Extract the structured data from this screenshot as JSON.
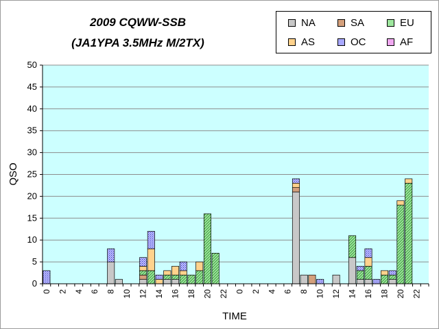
{
  "chart_data": {
    "type": "bar",
    "stacked": true,
    "title_line1": "2009 CQWW-SSB",
    "title_line2": "(JA1YPA  3.5MHz  M/2TX)",
    "xlabel": "TIME",
    "ylabel": "QSO",
    "ylim": [
      0,
      50
    ],
    "yticks": [
      "0",
      "5",
      "10",
      "15",
      "20",
      "25",
      "30",
      "35",
      "40",
      "45",
      "50"
    ],
    "grid": true,
    "legend_position": "top-right",
    "categories": [
      "0",
      "",
      "2",
      "",
      "4",
      "",
      "6",
      "",
      "8",
      "",
      "10",
      "",
      "12",
      "",
      "14",
      "",
      "16",
      "",
      "18",
      "",
      "20",
      "",
      "22",
      "",
      "0",
      "",
      "2",
      "",
      "4",
      "",
      "6",
      "",
      "8",
      "",
      "10",
      "",
      "12",
      "",
      "14",
      "",
      "16",
      "",
      "18",
      "",
      "20",
      "",
      "22",
      ""
    ],
    "series": [
      {
        "name": "NA",
        "color": "#c8c8c8",
        "pattern": "solid",
        "values": [
          0,
          0,
          0,
          0,
          0,
          0,
          0,
          0,
          5,
          1,
          0,
          0,
          1,
          0,
          0,
          1,
          1,
          0,
          0,
          0,
          0,
          0,
          0,
          0,
          0,
          0,
          0,
          0,
          0,
          0,
          0,
          21,
          2,
          0,
          0,
          0,
          2,
          0,
          6,
          1,
          1,
          0,
          0,
          1,
          0,
          0,
          0,
          0
        ]
      },
      {
        "name": "SA",
        "color": "#d4a07c",
        "pattern": "solid",
        "values": [
          0,
          0,
          0,
          0,
          0,
          0,
          0,
          0,
          0,
          0,
          0,
          0,
          1,
          0,
          0,
          0,
          0,
          0,
          0,
          0,
          0,
          0,
          0,
          0,
          0,
          0,
          0,
          0,
          0,
          0,
          0,
          1,
          0,
          2,
          0,
          0,
          0,
          0,
          0,
          0,
          0,
          0,
          0,
          0,
          0,
          0,
          0,
          0
        ]
      },
      {
        "name": "EU",
        "color": "#9ee79e",
        "pattern": "hatch",
        "values": [
          0,
          0,
          0,
          0,
          0,
          0,
          0,
          0,
          0,
          0,
          0,
          0,
          1,
          3,
          0,
          1,
          1,
          2,
          2,
          3,
          16,
          7,
          0,
          0,
          0,
          0,
          0,
          0,
          0,
          0,
          0,
          0,
          0,
          0,
          0,
          0,
          0,
          0,
          5,
          2,
          3,
          0,
          2,
          1,
          18,
          23,
          0,
          0
        ]
      },
      {
        "name": "AS",
        "color": "#ffd28c",
        "pattern": "solid",
        "values": [
          0,
          0,
          0,
          0,
          0,
          0,
          0,
          0,
          0,
          0,
          0,
          0,
          1,
          5,
          1,
          1,
          2,
          1,
          0,
          2,
          0,
          0,
          0,
          0,
          0,
          0,
          0,
          0,
          0,
          0,
          0,
          1,
          0,
          0,
          0,
          0,
          0,
          0,
          0,
          0,
          2,
          0,
          1,
          0,
          1,
          1,
          0,
          0
        ]
      },
      {
        "name": "OC",
        "color": "#a8a8ff",
        "pattern": "check",
        "values": [
          3,
          0,
          0,
          0,
          0,
          0,
          0,
          0,
          3,
          0,
          0,
          0,
          2,
          4,
          1,
          0,
          0,
          2,
          0,
          0,
          0,
          0,
          0,
          0,
          0,
          0,
          0,
          0,
          0,
          0,
          0,
          1,
          0,
          0,
          1,
          0,
          0,
          0,
          0,
          1,
          2,
          1,
          0,
          1,
          0,
          0,
          0,
          0
        ]
      },
      {
        "name": "AF",
        "color": "#f0a8f0",
        "pattern": "solid",
        "values": [
          0,
          0,
          0,
          0,
          0,
          0,
          0,
          0,
          0,
          0,
          0,
          0,
          0,
          0,
          0,
          0,
          0,
          0,
          0,
          0,
          0,
          0,
          0,
          0,
          0,
          0,
          0,
          0,
          0,
          0,
          0,
          0,
          0,
          0,
          0,
          0,
          0,
          0,
          0,
          0,
          0,
          0,
          0,
          0,
          0,
          0,
          0,
          0
        ]
      }
    ]
  }
}
